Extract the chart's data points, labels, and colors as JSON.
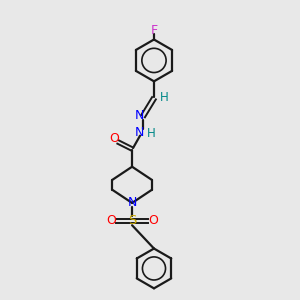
{
  "background_color": "#e8e8e8",
  "bond_color": "#1a1a1a",
  "atoms": {
    "F": {
      "color": "#cc33cc"
    },
    "O_carbonyl": {
      "color": "#ff0000"
    },
    "N1": {
      "color": "#0000ff"
    },
    "N2": {
      "color": "#0000ff"
    },
    "N_pip": {
      "color": "#0000ff"
    },
    "S": {
      "color": "#ccaa00"
    },
    "O_s1": {
      "color": "#ff0000"
    },
    "O_s2": {
      "color": "#ff0000"
    },
    "H_imine": {
      "color": "#008888"
    },
    "H_amine": {
      "color": "#008888"
    }
  },
  "layout": {
    "xlim": [
      0,
      10
    ],
    "ylim": [
      0,
      15
    ],
    "figsize": [
      3.0,
      3.0
    ],
    "dpi": 100
  }
}
